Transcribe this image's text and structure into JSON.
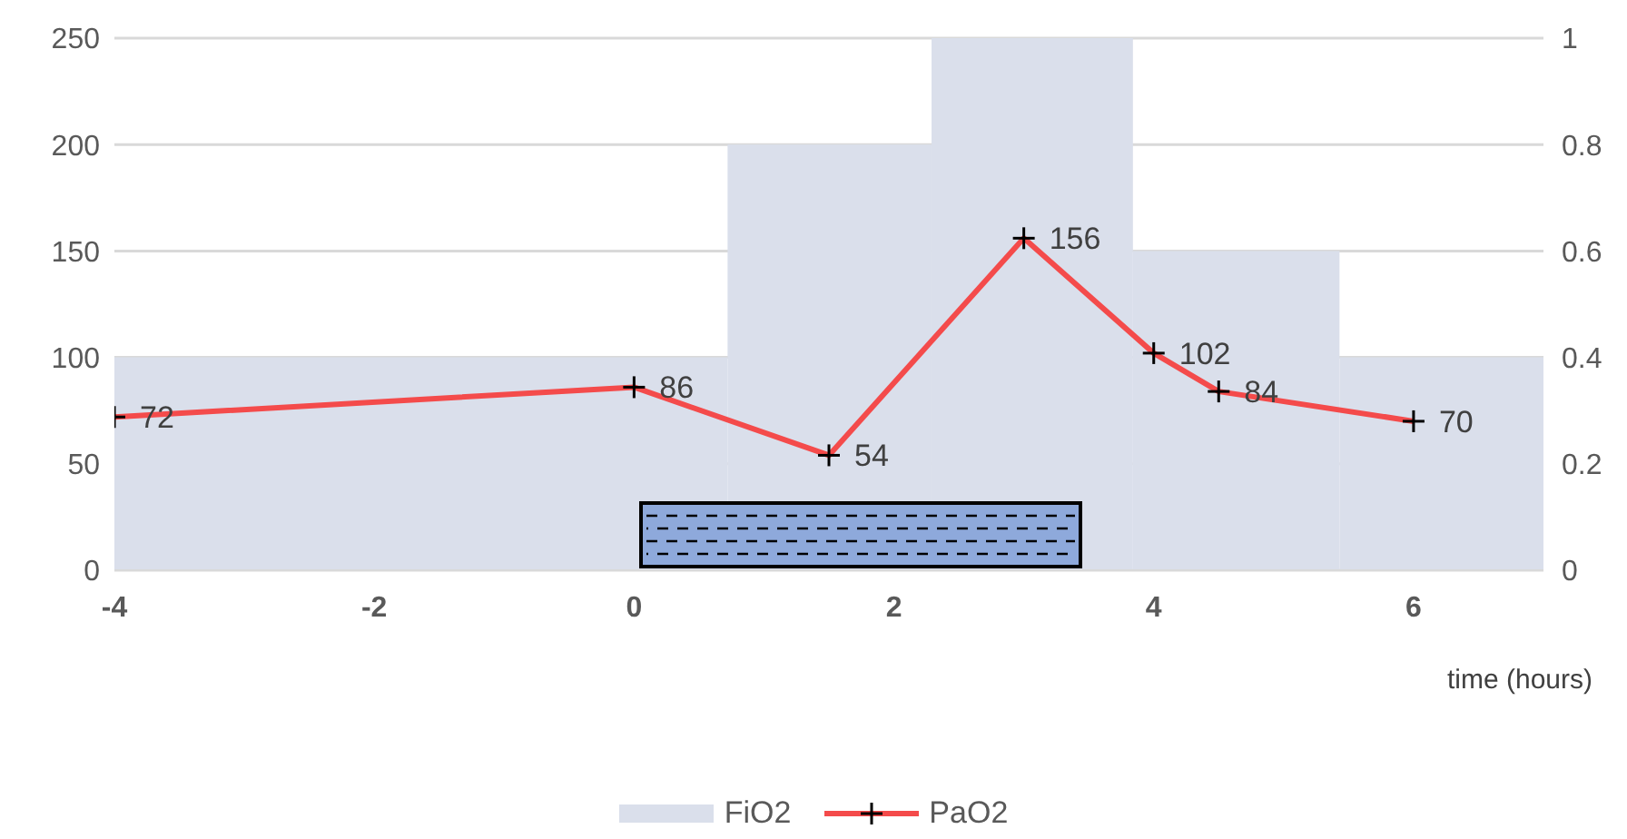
{
  "chart_data": {
    "type": "line",
    "xlabel": "time (hours)",
    "xlim": [
      -4,
      7
    ],
    "xticks": [
      -4,
      -2,
      0,
      2,
      4,
      6
    ],
    "ylim": [
      0,
      250
    ],
    "yticks": [
      0,
      50,
      100,
      150,
      200,
      250
    ],
    "y2lim": [
      0,
      1
    ],
    "y2ticks": [
      0,
      0.2,
      0.4,
      0.6,
      0.8,
      1
    ],
    "grid": "y",
    "legend": "bottom",
    "marker": "cross",
    "line_style": "solid",
    "series": [
      {
        "name": "FiO2",
        "type": "histogram",
        "axis": "y2",
        "color": "#dadfeb",
        "bins": [
          -4,
          0.72,
          2.29,
          3.84,
          5.43,
          7
        ],
        "values": [
          0.4,
          0.8,
          1,
          0.6,
          0.4
        ]
      },
      {
        "name": "PaO2",
        "color": "#f44b4b",
        "x": [
          -4,
          0,
          1.5,
          3,
          4,
          4.5,
          6
        ],
        "values": [
          72,
          86,
          54,
          156,
          102,
          84,
          70
        ],
        "value_labels": [
          "72",
          "86",
          "54",
          "156",
          "102",
          "84",
          "70"
        ]
      }
    ]
  }
}
